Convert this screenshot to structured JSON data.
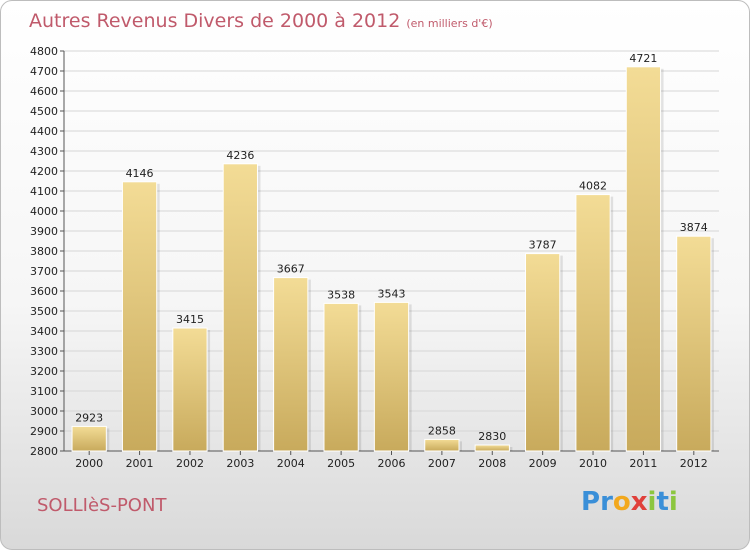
{
  "title": "Autres Revenus Divers de 2000 à 2012",
  "unit": "(en milliers d'€)",
  "commune": "SOLLIèS-PONT",
  "logo": {
    "text": "Proxiti",
    "letters": [
      "P",
      "r",
      "o",
      "x",
      "i",
      "t",
      "i"
    ],
    "colors": [
      "#3a8fd8",
      "#3a8fd8",
      "#f2a81d",
      "#e0403a",
      "#8cc63f",
      "#3a8fd8",
      "#8cc63f"
    ]
  },
  "chart_data": {
    "type": "bar",
    "categories": [
      "2000",
      "2001",
      "2002",
      "2003",
      "2004",
      "2005",
      "2006",
      "2007",
      "2008",
      "2009",
      "2010",
      "2011",
      "2012"
    ],
    "values": [
      2923,
      4146,
      3415,
      4236,
      3667,
      3538,
      3543,
      2858,
      2830,
      3787,
      4082,
      4721,
      3874
    ],
    "ylim": [
      2800,
      4800
    ],
    "yticks": [
      2800,
      2900,
      3000,
      3100,
      3200,
      3300,
      3400,
      3500,
      3600,
      3700,
      3800,
      3900,
      4000,
      4100,
      4200,
      4300,
      4400,
      4500,
      4600,
      4700,
      4800
    ],
    "grid": true,
    "bar_color_top": "#f3dc96",
    "bar_color_bottom": "#c8aa5c"
  }
}
